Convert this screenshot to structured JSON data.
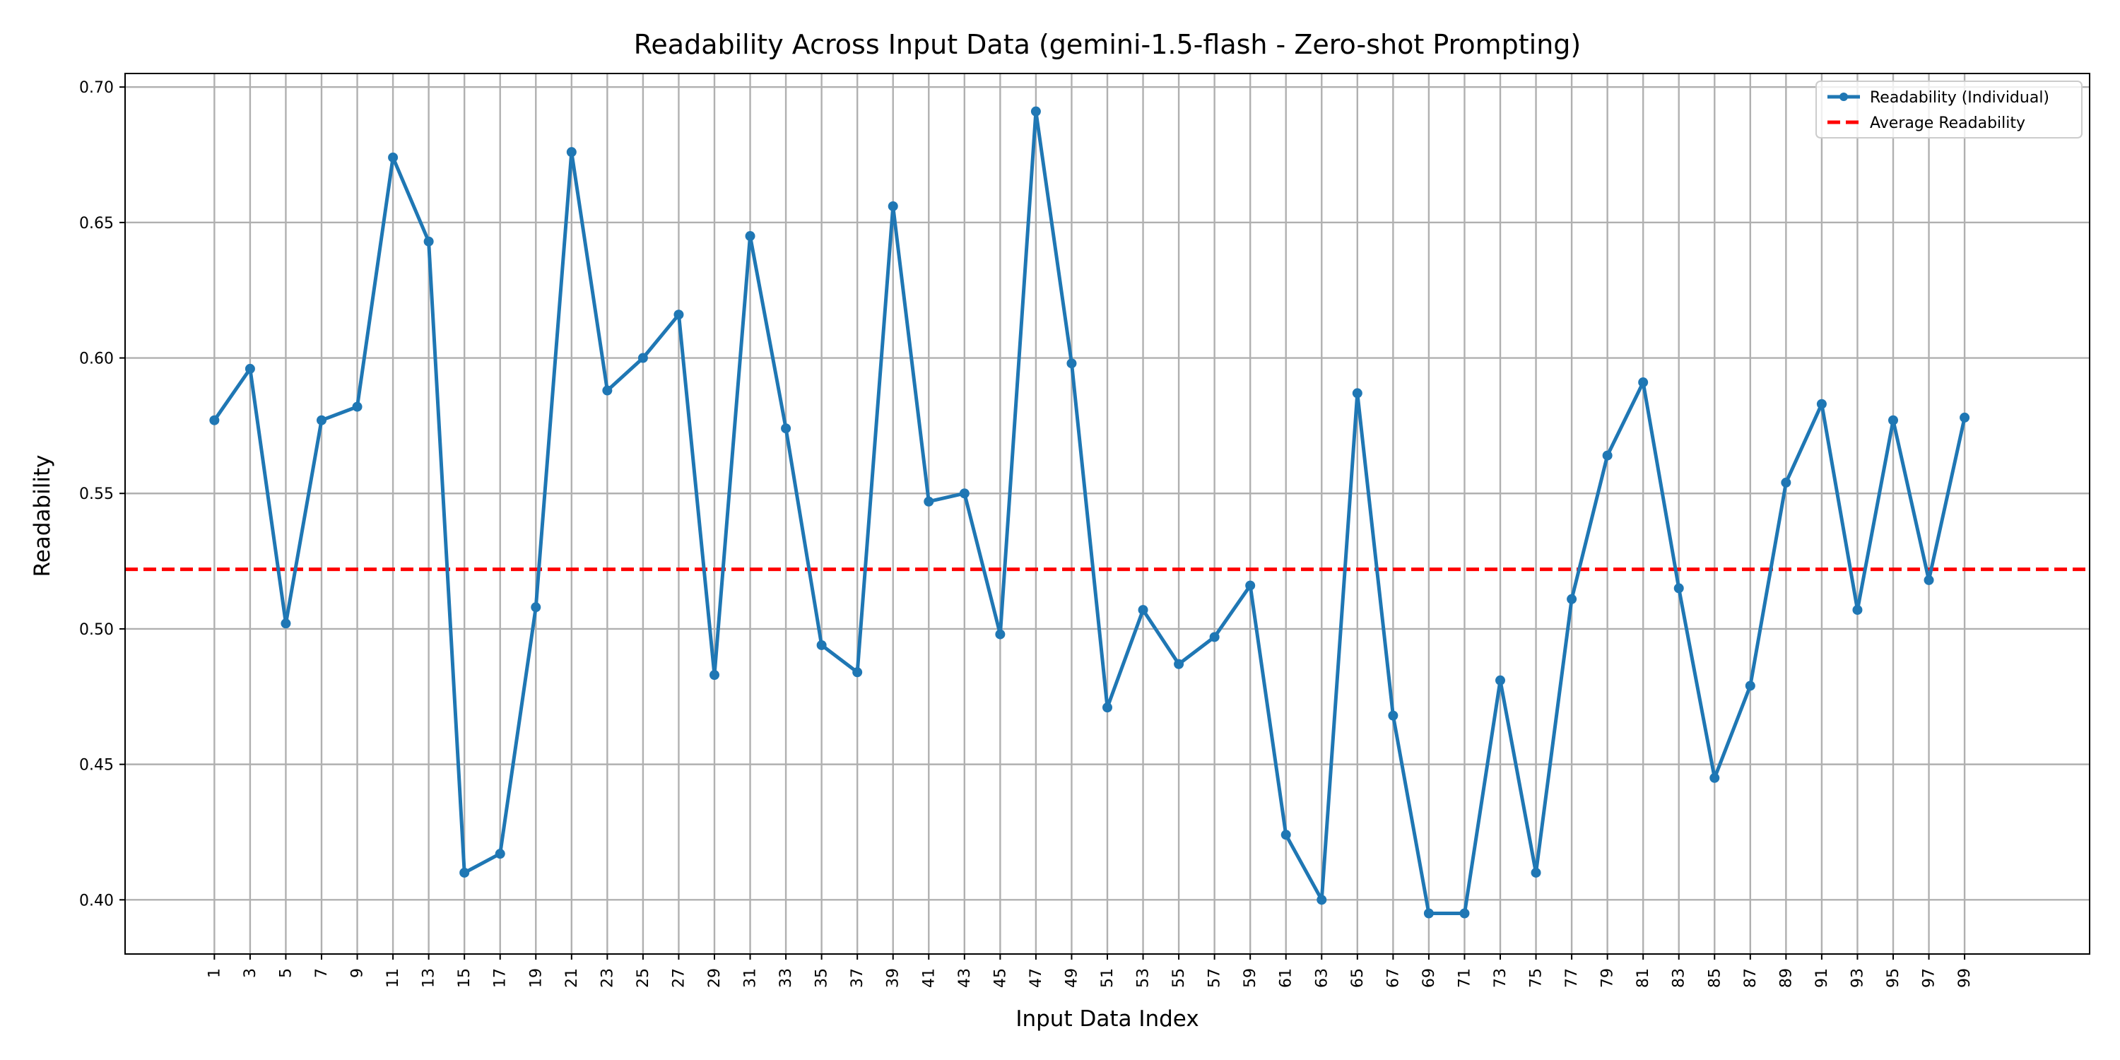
{
  "chart_data": {
    "type": "line",
    "title": "Readability Across Input Data (gemini-1.5-flash - Zero-shot Prompting)",
    "xlabel": "Input Data Index",
    "ylabel": "Readability",
    "xlim": [
      -4,
      106
    ],
    "ylim": [
      0.38,
      0.705
    ],
    "x_ticks": [
      1,
      3,
      5,
      7,
      9,
      11,
      13,
      15,
      17,
      19,
      21,
      23,
      25,
      27,
      29,
      31,
      33,
      35,
      37,
      39,
      41,
      43,
      45,
      47,
      49,
      51,
      53,
      55,
      57,
      59,
      61,
      63,
      65,
      67,
      69,
      71,
      73,
      75,
      77,
      79,
      81,
      83,
      85,
      87,
      89,
      91,
      93,
      95,
      97,
      99
    ],
    "y_ticks": [
      "0.40",
      "0.45",
      "0.50",
      "0.55",
      "0.60",
      "0.65",
      "0.70"
    ],
    "grid": true,
    "legend_position": "top-right",
    "series": [
      {
        "name": "Readability (Individual)",
        "color": "#1f77b4",
        "style": "line-with-markers",
        "x": [
          1,
          3,
          5,
          7,
          9,
          11,
          13,
          15,
          17,
          19,
          21,
          23,
          25,
          27,
          29,
          31,
          33,
          35,
          37,
          39,
          41,
          43,
          45,
          47,
          49,
          51,
          53,
          55,
          57,
          59,
          61,
          63,
          65,
          67,
          69,
          71,
          73,
          75,
          77,
          79,
          81,
          83,
          85,
          87,
          89,
          91,
          93,
          95,
          97,
          99
        ],
        "values": [
          0.577,
          0.596,
          0.502,
          0.577,
          0.582,
          0.674,
          0.643,
          0.41,
          0.417,
          0.508,
          0.676,
          0.588,
          0.6,
          0.616,
          0.483,
          0.645,
          0.574,
          0.494,
          0.484,
          0.656,
          0.547,
          0.55,
          0.498,
          0.691,
          0.598,
          0.471,
          0.507,
          0.487,
          0.497,
          0.516,
          0.424,
          0.4,
          0.587,
          0.468,
          0.395,
          0.395,
          0.481,
          0.41,
          0.511,
          0.564,
          0.591,
          0.515,
          0.445,
          0.479,
          0.554,
          0.583,
          0.507,
          0.577,
          0.518,
          0.578
        ]
      },
      {
        "name": "Average Readability",
        "color": "#ff0000",
        "style": "dashed",
        "value": 0.522
      }
    ]
  }
}
